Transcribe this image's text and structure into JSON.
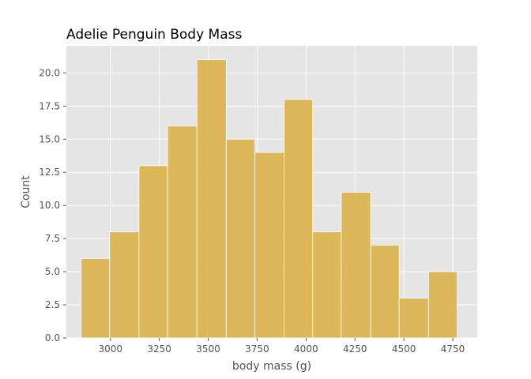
{
  "chart_data": {
    "type": "bar",
    "title": "Adelie Penguin Body Mass",
    "xlabel": "body mass (g)",
    "ylabel": "Count",
    "xlim": [
      2775,
      4875
    ],
    "ylim": [
      0,
      22.05
    ],
    "xticks": [
      3000,
      3250,
      3500,
      3750,
      4000,
      4250,
      4500,
      4750
    ],
    "xtick_labels": [
      "3000",
      "3250",
      "3500",
      "3750",
      "4000",
      "4250",
      "4500",
      "4750"
    ],
    "yticks": [
      0,
      2.5,
      5,
      7.5,
      10,
      12.5,
      15,
      17.5,
      20
    ],
    "ytick_labels": [
      "0.0",
      "2.5",
      "5.0",
      "7.5",
      "10.0",
      "12.5",
      "15.0",
      "17.5",
      "20.0"
    ],
    "bin_edges": [
      2850,
      2996,
      3146,
      3292,
      3442,
      3592,
      3738,
      3888,
      4034,
      4180,
      4330,
      4476,
      4626,
      4772
    ],
    "values": [
      6,
      8,
      13,
      16,
      21,
      15,
      14,
      18,
      8,
      11,
      7,
      3,
      5
    ],
    "grid": true,
    "colors": {
      "bar": "#dab24a",
      "bar_edge": "#ffffff",
      "background": "#e5e5e5",
      "grid": "#ffffff"
    }
  }
}
